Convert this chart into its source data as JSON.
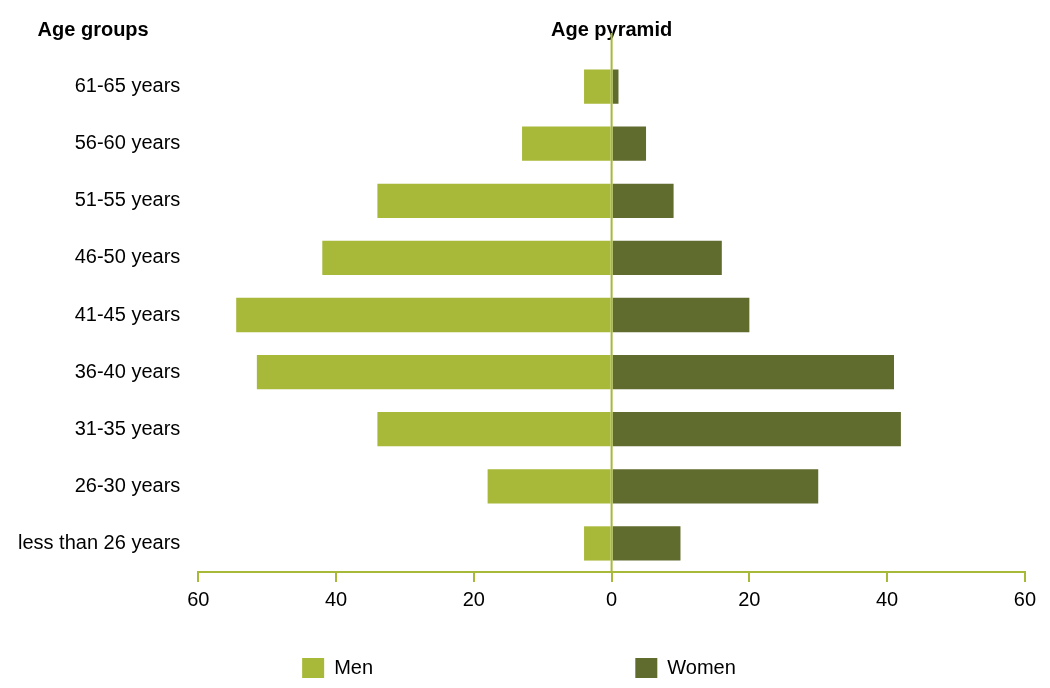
{
  "chart_data": {
    "type": "bar",
    "title": "Age pyramid",
    "ylabel": "Age groups",
    "orientation": "horizontal",
    "stacked": true,
    "categories": [
      "61-65 years",
      "56-60 years",
      "51-55 years",
      "46-50 years",
      "41-45 years",
      "36-40 years",
      "31-35 years",
      "26-30 years",
      "less than 26 years"
    ],
    "series": [
      {
        "name": "Men",
        "color": "#a8b838",
        "values": [
          -4,
          -13,
          -34,
          -42,
          -54.5,
          -51.5,
          -34,
          -18,
          -4
        ]
      },
      {
        "name": "Women",
        "color": "#606b2e",
        "values": [
          1,
          5,
          9,
          16,
          20,
          41,
          42,
          30,
          10
        ]
      }
    ],
    "xlim": [
      -60,
      60
    ],
    "xticks": [
      {
        "value": -60,
        "label": "60"
      },
      {
        "value": -40,
        "label": "40"
      },
      {
        "value": -20,
        "label": "20"
      },
      0,
      20,
      40,
      60
    ],
    "ref_lines": [
      {
        "axis": "x",
        "value": 0,
        "color": "#a8b838"
      }
    ],
    "grid": false,
    "legend": "bottom"
  }
}
